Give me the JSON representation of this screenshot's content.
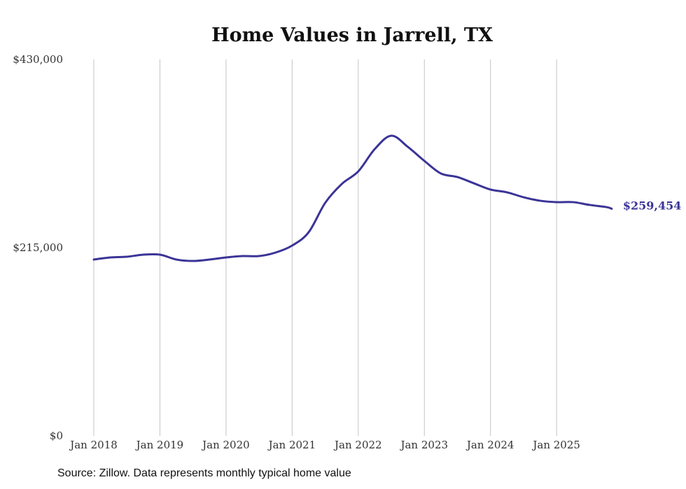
{
  "chart_data": {
    "type": "line",
    "title": "Home Values in Jarrell, TX",
    "xlabel": "",
    "ylabel": "",
    "ylim": [
      0,
      430000
    ],
    "y_ticks": [
      0,
      215000,
      430000
    ],
    "y_tick_labels": [
      "$0",
      "$215,000",
      "$430,000"
    ],
    "x_tick_labels": [
      "Jan 2018",
      "Jan 2019",
      "Jan 2020",
      "Jan 2021",
      "Jan 2022",
      "Jan 2023",
      "Jan 2024",
      "Jan 2025"
    ],
    "x_tick_years": [
      2018,
      2019,
      2020,
      2021,
      2022,
      2023,
      2024,
      2025
    ],
    "grid": "vertical",
    "line_color": "#3b3497",
    "series": [
      {
        "name": "Typical home value",
        "x": [
          "2018-01",
          "2018-04",
          "2018-07",
          "2018-10",
          "2019-01",
          "2019-04",
          "2019-07",
          "2019-10",
          "2020-01",
          "2020-04",
          "2020-07",
          "2020-10",
          "2021-01",
          "2021-04",
          "2021-07",
          "2021-10",
          "2022-01",
          "2022-04",
          "2022-07",
          "2022-10",
          "2023-01",
          "2023-04",
          "2023-07",
          "2023-10",
          "2024-01",
          "2024-04",
          "2024-07",
          "2024-10",
          "2025-01",
          "2025-04",
          "2025-07",
          "2025-10",
          "2025-11"
        ],
        "values": [
          201400,
          203800,
          204600,
          207000,
          207000,
          201400,
          199800,
          201400,
          203800,
          205400,
          205400,
          209400,
          217400,
          232600,
          266200,
          287700,
          302100,
          327700,
          342900,
          330100,
          314100,
          299700,
          295700,
          288500,
          281400,
          278200,
          272600,
          268600,
          267000,
          267000,
          263800,
          261400,
          259454
        ]
      }
    ],
    "end_label": "$259,454"
  },
  "source": "Source: Zillow. Data represents monthly typical home value"
}
